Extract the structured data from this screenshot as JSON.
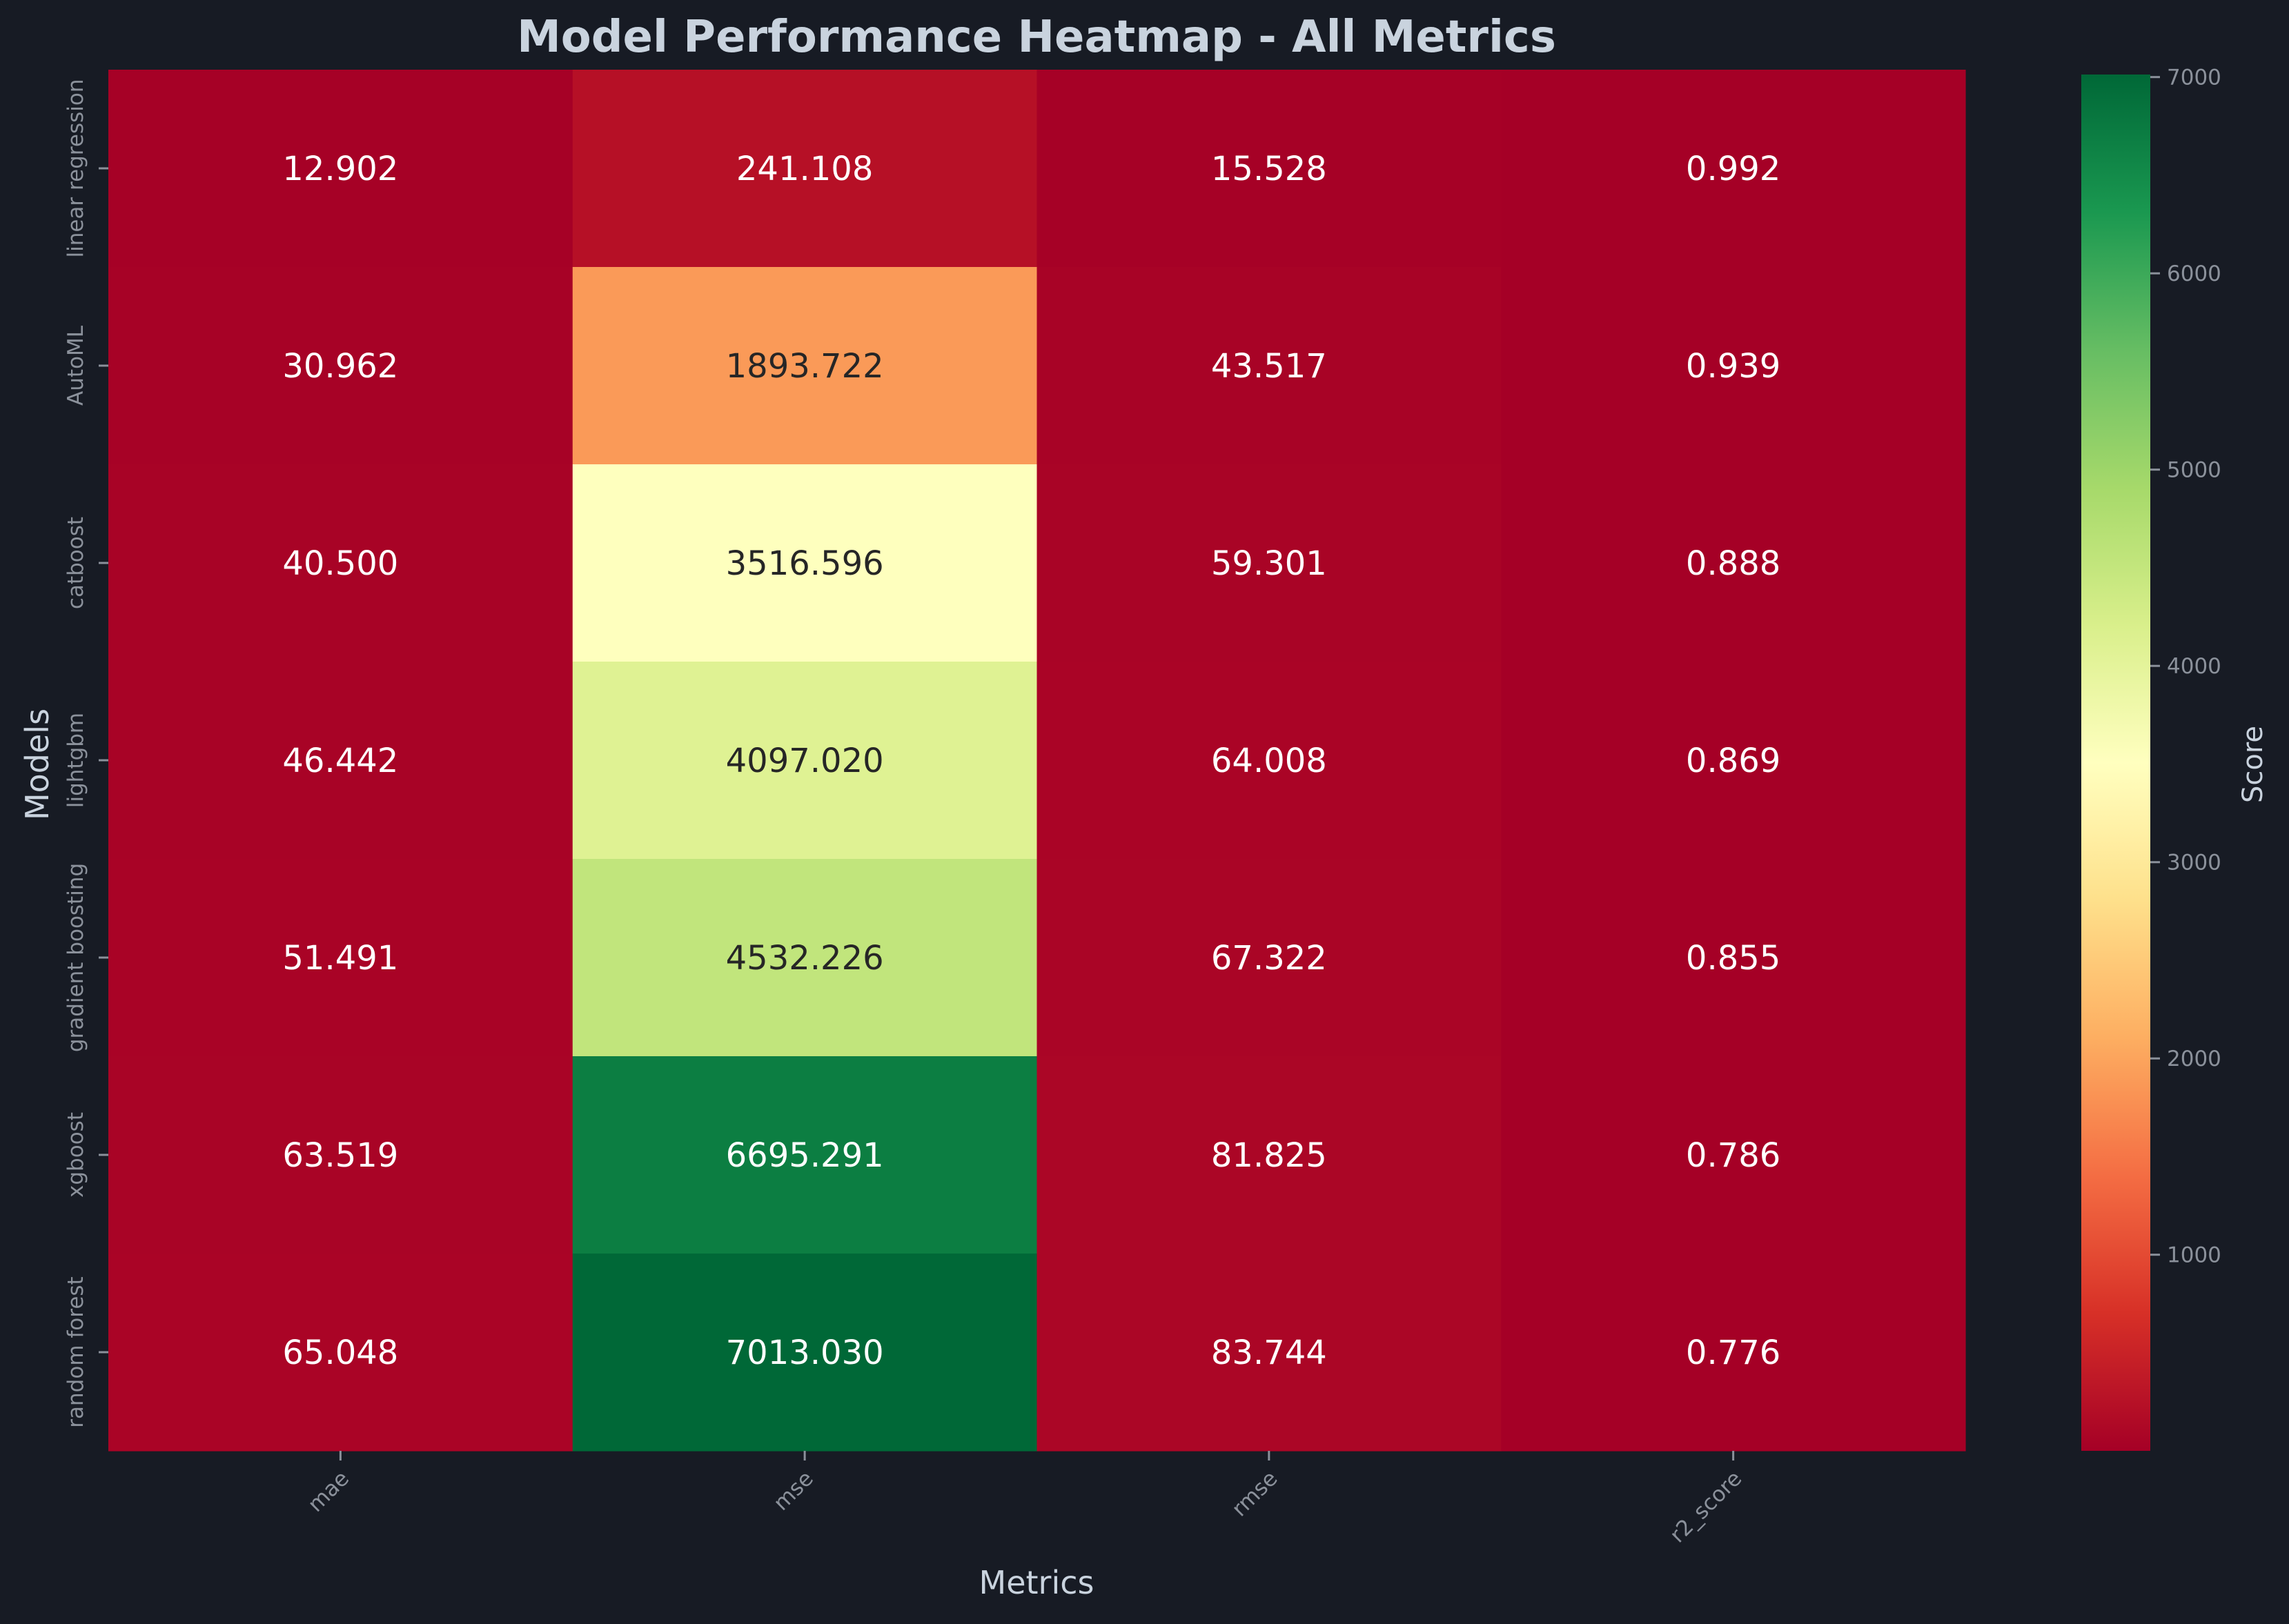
{
  "chart_data": {
    "type": "heatmap",
    "title": "Model Performance Heatmap - All Metrics",
    "xlabel": "Metrics",
    "ylabel": "Models",
    "rows": [
      "linear regression",
      "AutoML",
      "catboost",
      "lightgbm",
      "gradient boosting",
      "xgboost",
      "random forest"
    ],
    "columns": [
      "mae",
      "mse",
      "rmse",
      "r2_score"
    ],
    "values": [
      [
        12.902,
        241.108,
        15.528,
        0.992
      ],
      [
        30.962,
        1893.722,
        43.517,
        0.939
      ],
      [
        40.5,
        3516.596,
        59.301,
        0.888
      ],
      [
        46.442,
        4097.02,
        64.008,
        0.869
      ],
      [
        51.491,
        4532.226,
        67.322,
        0.855
      ],
      [
        63.519,
        6695.291,
        81.825,
        0.786
      ],
      [
        65.048,
        7013.03,
        83.744,
        0.776
      ]
    ],
    "value_labels": [
      [
        "12.902",
        "241.108",
        "15.528",
        "0.992"
      ],
      [
        "30.962",
        "1893.722",
        "43.517",
        "0.939"
      ],
      [
        "40.500",
        "3516.596",
        "59.301",
        "0.888"
      ],
      [
        "46.442",
        "4097.020",
        "64.008",
        "0.869"
      ],
      [
        "51.491",
        "4532.226",
        "67.322",
        "0.855"
      ],
      [
        "63.519",
        "6695.291",
        "81.825",
        "0.786"
      ],
      [
        "65.048",
        "7013.030",
        "83.744",
        "0.776"
      ]
    ],
    "colormap": "RdYlGn",
    "colorbar": {
      "label": "Score",
      "range": [
        0.776,
        7013.03
      ],
      "ticks": [
        1000,
        2000,
        3000,
        4000,
        5000,
        6000,
        7000
      ],
      "tick_labels": [
        "1000",
        "2000",
        "3000",
        "4000",
        "5000",
        "6000",
        "7000"
      ]
    },
    "grid": false
  },
  "colors": {
    "background": "#171b24",
    "title_text": "#c9d3de",
    "label_text": "#c9d3de",
    "tick_text": "#8b919b",
    "annotation_light": "#ffffff",
    "annotation_dark": "#262626"
  }
}
